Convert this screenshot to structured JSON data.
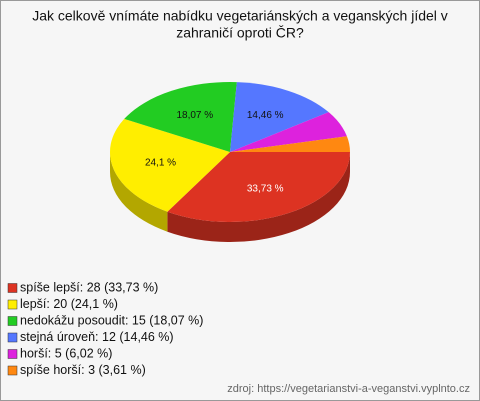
{
  "chart_data": {
    "type": "pie",
    "title": [
      "Jak celkově vnímáte nabídku vegetariánských a veganských jídel v",
      "zahraničí oproti ČR?"
    ],
    "categories": [
      "spíše lepší",
      "lepší",
      "nedokážu posoudit",
      "stejná úroveň",
      "horší",
      "spíše horší"
    ],
    "values": [
      33.73,
      24.1,
      18.07,
      14.46,
      6.02,
      3.61
    ],
    "value_labels": [
      "33,73 %",
      "24,1 %",
      "18,07 %",
      "14,46 %",
      null,
      null
    ],
    "colors": [
      "#dd3322",
      "#ffee00",
      "#22cc22",
      "#5577ff",
      "#dd22dd",
      "#ff8811"
    ],
    "legend_labels": [
      "spíše lepší: 28 (33,73 %)",
      "lepší: 20 (24,1 %)",
      "nedokážu posoudit: 15 (18,07 %)",
      "stejná úroveň: 12 (14,46 %)",
      "horší: 5 (6,02 %)",
      "spíše horší: 3 (3,61 %)"
    ],
    "source": "zdroj: https://vegetarianstvi-a-veganstvi.vyplnto.cz"
  }
}
